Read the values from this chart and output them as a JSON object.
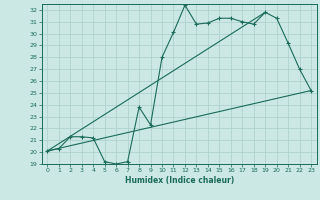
{
  "xlabel": "Humidex (Indice chaleur)",
  "bg_color": "#cce8e4",
  "line_color": "#1a6b5a",
  "grid_color": "#aacfca",
  "xlim": [
    -0.5,
    23.5
  ],
  "ylim": [
    19,
    32.5
  ],
  "yticks": [
    19,
    20,
    21,
    22,
    23,
    24,
    25,
    26,
    27,
    28,
    29,
    30,
    31,
    32
  ],
  "xticks": [
    0,
    1,
    2,
    3,
    4,
    5,
    6,
    7,
    8,
    9,
    10,
    11,
    12,
    13,
    14,
    15,
    16,
    17,
    18,
    19,
    20,
    21,
    22,
    23
  ],
  "line1_x": [
    0,
    1,
    2,
    3,
    4,
    5,
    6,
    7,
    8,
    9,
    10,
    11,
    12,
    13,
    14,
    15,
    16,
    17,
    18,
    19,
    20,
    21,
    22,
    23
  ],
  "line1_y": [
    20.1,
    20.3,
    21.3,
    21.3,
    21.2,
    19.2,
    19.0,
    19.2,
    23.8,
    22.3,
    28.0,
    30.1,
    32.4,
    30.8,
    30.9,
    31.3,
    31.3,
    31.0,
    30.8,
    31.8,
    31.3,
    29.2,
    27.0,
    25.2
  ],
  "line2_x": [
    0,
    23
  ],
  "line2_y": [
    20.1,
    25.2
  ],
  "line3_x": [
    0,
    19
  ],
  "line3_y": [
    20.1,
    31.8
  ]
}
